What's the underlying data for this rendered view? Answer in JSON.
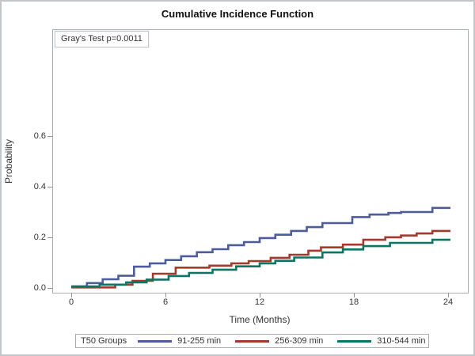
{
  "chart_data": {
    "type": "line",
    "subtype": "step",
    "title": "Cumulative Incidence Function",
    "annotation": "Gray's Test p=0.0011",
    "xlabel": "Time (Months)",
    "ylabel": "Probability",
    "legend_title": "T50 Groups",
    "legend_position": "bottom",
    "grid": false,
    "xlim": [
      -1.21,
      25.26
    ],
    "ylim": [
      -0.019,
      1.022
    ],
    "x_ticks": [
      0,
      6,
      12,
      18,
      24
    ],
    "y_ticks": [
      "0.0",
      "0.2",
      "0.4",
      "0.6"
    ],
    "series": [
      {
        "name": "91-255 min",
        "color": "#4e5c9d",
        "points": [
          [
            0,
            0.006
          ],
          [
            1,
            0.019
          ],
          [
            2,
            0.034
          ],
          [
            3,
            0.048
          ],
          [
            4,
            0.084
          ],
          [
            5,
            0.097
          ],
          [
            6,
            0.11
          ],
          [
            7,
            0.125
          ],
          [
            8,
            0.141
          ],
          [
            9,
            0.153
          ],
          [
            10,
            0.169
          ],
          [
            11,
            0.181
          ],
          [
            12,
            0.197
          ],
          [
            13,
            0.21
          ],
          [
            14,
            0.225
          ],
          [
            15,
            0.24
          ],
          [
            16,
            0.256
          ],
          [
            17.9,
            0.28
          ],
          [
            19,
            0.29
          ],
          [
            20.2,
            0.296
          ],
          [
            21,
            0.3
          ],
          [
            23,
            0.316
          ],
          [
            24.15,
            0.316
          ]
        ]
      },
      {
        "name": "256-309 min",
        "color": "#a43a2b",
        "points": [
          [
            0,
            0.002
          ],
          [
            2.8,
            0.013
          ],
          [
            3.9,
            0.028
          ],
          [
            5.2,
            0.056
          ],
          [
            6.65,
            0.08
          ],
          [
            8.8,
            0.088
          ],
          [
            10.2,
            0.097
          ],
          [
            11.3,
            0.106
          ],
          [
            12.7,
            0.119
          ],
          [
            13.9,
            0.131
          ],
          [
            15.1,
            0.147
          ],
          [
            15.9,
            0.16
          ],
          [
            17.3,
            0.171
          ],
          [
            18.6,
            0.19
          ],
          [
            20,
            0.2
          ],
          [
            21,
            0.207
          ],
          [
            22,
            0.215
          ],
          [
            23,
            0.225
          ],
          [
            24.15,
            0.225
          ]
        ]
      },
      {
        "name": "310-544 min",
        "color": "#0d7564",
        "points": [
          [
            0,
            0.006
          ],
          [
            1.8,
            0.013
          ],
          [
            3.5,
            0.022
          ],
          [
            4.8,
            0.033
          ],
          [
            6.2,
            0.047
          ],
          [
            7.5,
            0.059
          ],
          [
            9,
            0.072
          ],
          [
            10.5,
            0.085
          ],
          [
            12,
            0.097
          ],
          [
            13,
            0.107
          ],
          [
            14.2,
            0.12
          ],
          [
            16,
            0.14
          ],
          [
            17.3,
            0.152
          ],
          [
            18.6,
            0.165
          ],
          [
            20.3,
            0.178
          ],
          [
            23,
            0.19
          ],
          [
            24.15,
            0.19
          ]
        ]
      }
    ]
  }
}
